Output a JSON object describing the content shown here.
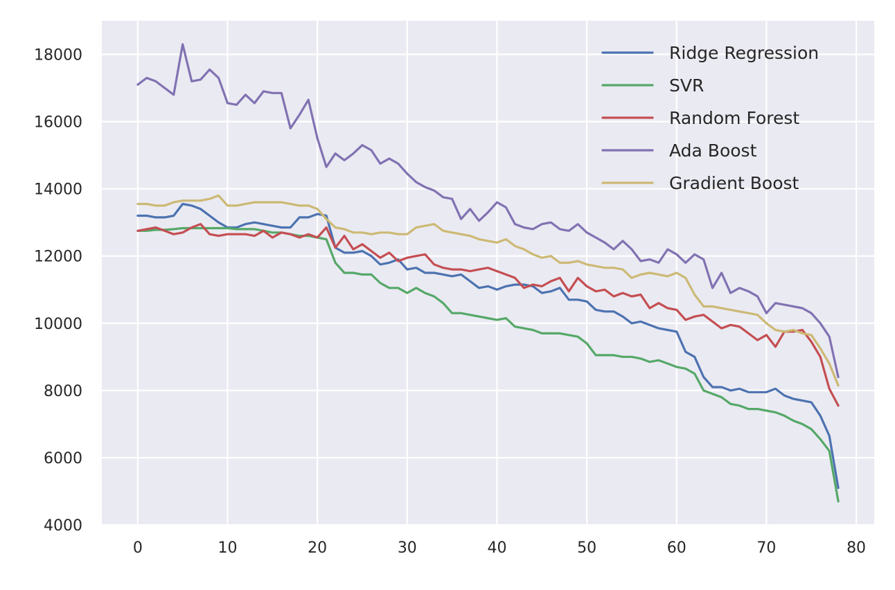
{
  "chart_data": {
    "type": "line",
    "title": "",
    "xlabel": "",
    "ylabel": "",
    "xlim": [
      -4,
      82
    ],
    "ylim": [
      4000,
      19000
    ],
    "xticks": [
      0,
      10,
      20,
      30,
      40,
      50,
      60,
      70,
      80
    ],
    "yticks": [
      4000,
      6000,
      8000,
      10000,
      12000,
      14000,
      16000,
      18000
    ],
    "grid": true,
    "background": "#eaeaf2",
    "legend_position": "top-right",
    "series": [
      {
        "name": "Ridge Regression",
        "color": "#4c72b0",
        "values": [
          13200,
          13200,
          13150,
          13150,
          13200,
          13550,
          13500,
          13400,
          13200,
          13000,
          12850,
          12850,
          12950,
          13000,
          12950,
          12900,
          12850,
          12850,
          13150,
          13150,
          13250,
          13200,
          12250,
          12100,
          12100,
          12150,
          12000,
          11750,
          11800,
          11900,
          11600,
          11650,
          11500,
          11500,
          11450,
          11400,
          11450,
          11250,
          11050,
          11100,
          11000,
          11100,
          11150,
          11150,
          11100,
          10900,
          10950,
          11050,
          10700,
          10700,
          10650,
          10400,
          10350,
          10350,
          10200,
          10000,
          10050,
          9950,
          9850,
          9800,
          9750,
          9150,
          9000,
          8400,
          8100,
          8100,
          8000,
          8050,
          7950,
          7950,
          7950,
          8050,
          7850,
          7750,
          7700,
          7650,
          7250,
          6650,
          5100
        ]
      },
      {
        "name": "SVR",
        "color": "#55a868",
        "values": [
          12750,
          12750,
          12780,
          12780,
          12800,
          12830,
          12830,
          12830,
          12830,
          12830,
          12830,
          12800,
          12800,
          12800,
          12750,
          12700,
          12700,
          12650,
          12600,
          12600,
          12550,
          12500,
          11800,
          11500,
          11500,
          11450,
          11450,
          11200,
          11050,
          11050,
          10900,
          11050,
          10900,
          10800,
          10600,
          10300,
          10300,
          10250,
          10200,
          10150,
          10100,
          10150,
          9900,
          9850,
          9800,
          9700,
          9700,
          9700,
          9650,
          9600,
          9400,
          9050,
          9050,
          9050,
          9000,
          9000,
          8950,
          8850,
          8900,
          8800,
          8700,
          8650,
          8500,
          8000,
          7900,
          7800,
          7600,
          7550,
          7450,
          7450,
          7400,
          7350,
          7250,
          7100,
          7000,
          6850,
          6550,
          6200,
          4700
        ]
      },
      {
        "name": "Random Forest",
        "color": "#c44e52",
        "values": [
          12750,
          12800,
          12850,
          12750,
          12650,
          12700,
          12850,
          12950,
          12650,
          12600,
          12650,
          12650,
          12650,
          12600,
          12750,
          12550,
          12700,
          12650,
          12550,
          12650,
          12550,
          12850,
          12250,
          12600,
          12200,
          12350,
          12150,
          11950,
          12100,
          11850,
          11950,
          12000,
          12050,
          11750,
          11650,
          11600,
          11600,
          11550,
          11600,
          11650,
          11550,
          11450,
          11350,
          11050,
          11150,
          11100,
          11250,
          11350,
          10950,
          11350,
          11100,
          10950,
          11000,
          10800,
          10900,
          10800,
          10850,
          10450,
          10600,
          10450,
          10400,
          10100,
          10200,
          10250,
          10050,
          9850,
          9950,
          9900,
          9700,
          9500,
          9650,
          9300,
          9750,
          9750,
          9800,
          9450,
          9000,
          8050,
          7550
        ]
      },
      {
        "name": "Ada Boost",
        "color": "#8172b2",
        "values": [
          17100,
          17300,
          17200,
          17000,
          16800,
          18300,
          17200,
          17250,
          17550,
          17300,
          16550,
          16500,
          16800,
          16550,
          16900,
          16850,
          16850,
          15800,
          16200,
          16650,
          15500,
          14650,
          15050,
          14850,
          15050,
          15300,
          15150,
          14750,
          14900,
          14750,
          14450,
          14200,
          14050,
          13950,
          13750,
          13700,
          13100,
          13400,
          13050,
          13300,
          13600,
          13450,
          12950,
          12850,
          12800,
          12950,
          13000,
          12800,
          12750,
          12950,
          12700,
          12550,
          12400,
          12200,
          12450,
          12200,
          11850,
          11900,
          11800,
          12200,
          12050,
          11800,
          12050,
          11900,
          11050,
          11500,
          10900,
          11050,
          10950,
          10800,
          10300,
          10600,
          10550,
          10500,
          10450,
          10300,
          10000,
          9600,
          8400
        ]
      },
      {
        "name": "Gradient Boost",
        "color": "#ccb974",
        "values": [
          13550,
          13550,
          13500,
          13500,
          13600,
          13650,
          13650,
          13650,
          13700,
          13800,
          13500,
          13500,
          13550,
          13600,
          13600,
          13600,
          13600,
          13550,
          13500,
          13500,
          13400,
          13100,
          12850,
          12800,
          12700,
          12700,
          12650,
          12700,
          12700,
          12650,
          12650,
          12850,
          12900,
          12950,
          12750,
          12700,
          12650,
          12600,
          12500,
          12450,
          12400,
          12500,
          12300,
          12200,
          12050,
          11950,
          12000,
          11800,
          11800,
          11850,
          11750,
          11700,
          11650,
          11650,
          11600,
          11350,
          11450,
          11500,
          11450,
          11400,
          11500,
          11350,
          10850,
          10500,
          10500,
          10450,
          10400,
          10350,
          10300,
          10250,
          10000,
          9800,
          9750,
          9800,
          9700,
          9650,
          9250,
          8800,
          8150
        ]
      }
    ]
  }
}
